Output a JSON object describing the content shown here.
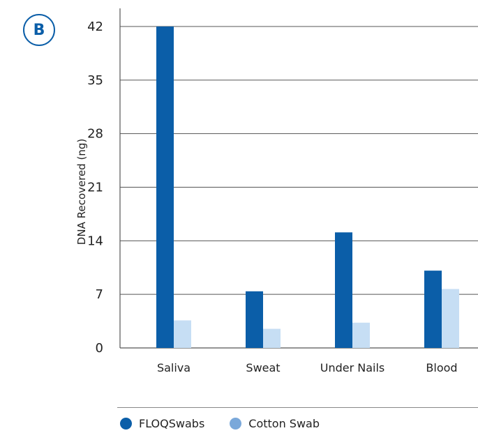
{
  "panel_label": "B",
  "colors": {
    "floq": "#0b5ea8",
    "cotton": "#c6def4",
    "cotton_legend": "#7aa8da",
    "grid": "#555555",
    "badge": "#0b5ea8"
  },
  "legend": [
    {
      "label": "FLOQSwabs",
      "color": "#0b5ea8"
    },
    {
      "label": "Cotton Swab",
      "color": "#7aa8da"
    }
  ],
  "chart_data": {
    "type": "bar",
    "title": "",
    "xlabel": "",
    "ylabel": "DNA Recovered (ng)",
    "ylim": [
      0,
      42
    ],
    "yticks": [
      0,
      7,
      14,
      21,
      28,
      35,
      42
    ],
    "grid": true,
    "categories": [
      "Saliva",
      "Sweat",
      "Under Nails",
      "Blood"
    ],
    "series": [
      {
        "name": "FLOQSwabs",
        "values": [
          42,
          7.4,
          15.1,
          10.1
        ]
      },
      {
        "name": "Cotton Swab",
        "values": [
          3.6,
          2.5,
          3.3,
          7.7
        ]
      }
    ]
  }
}
